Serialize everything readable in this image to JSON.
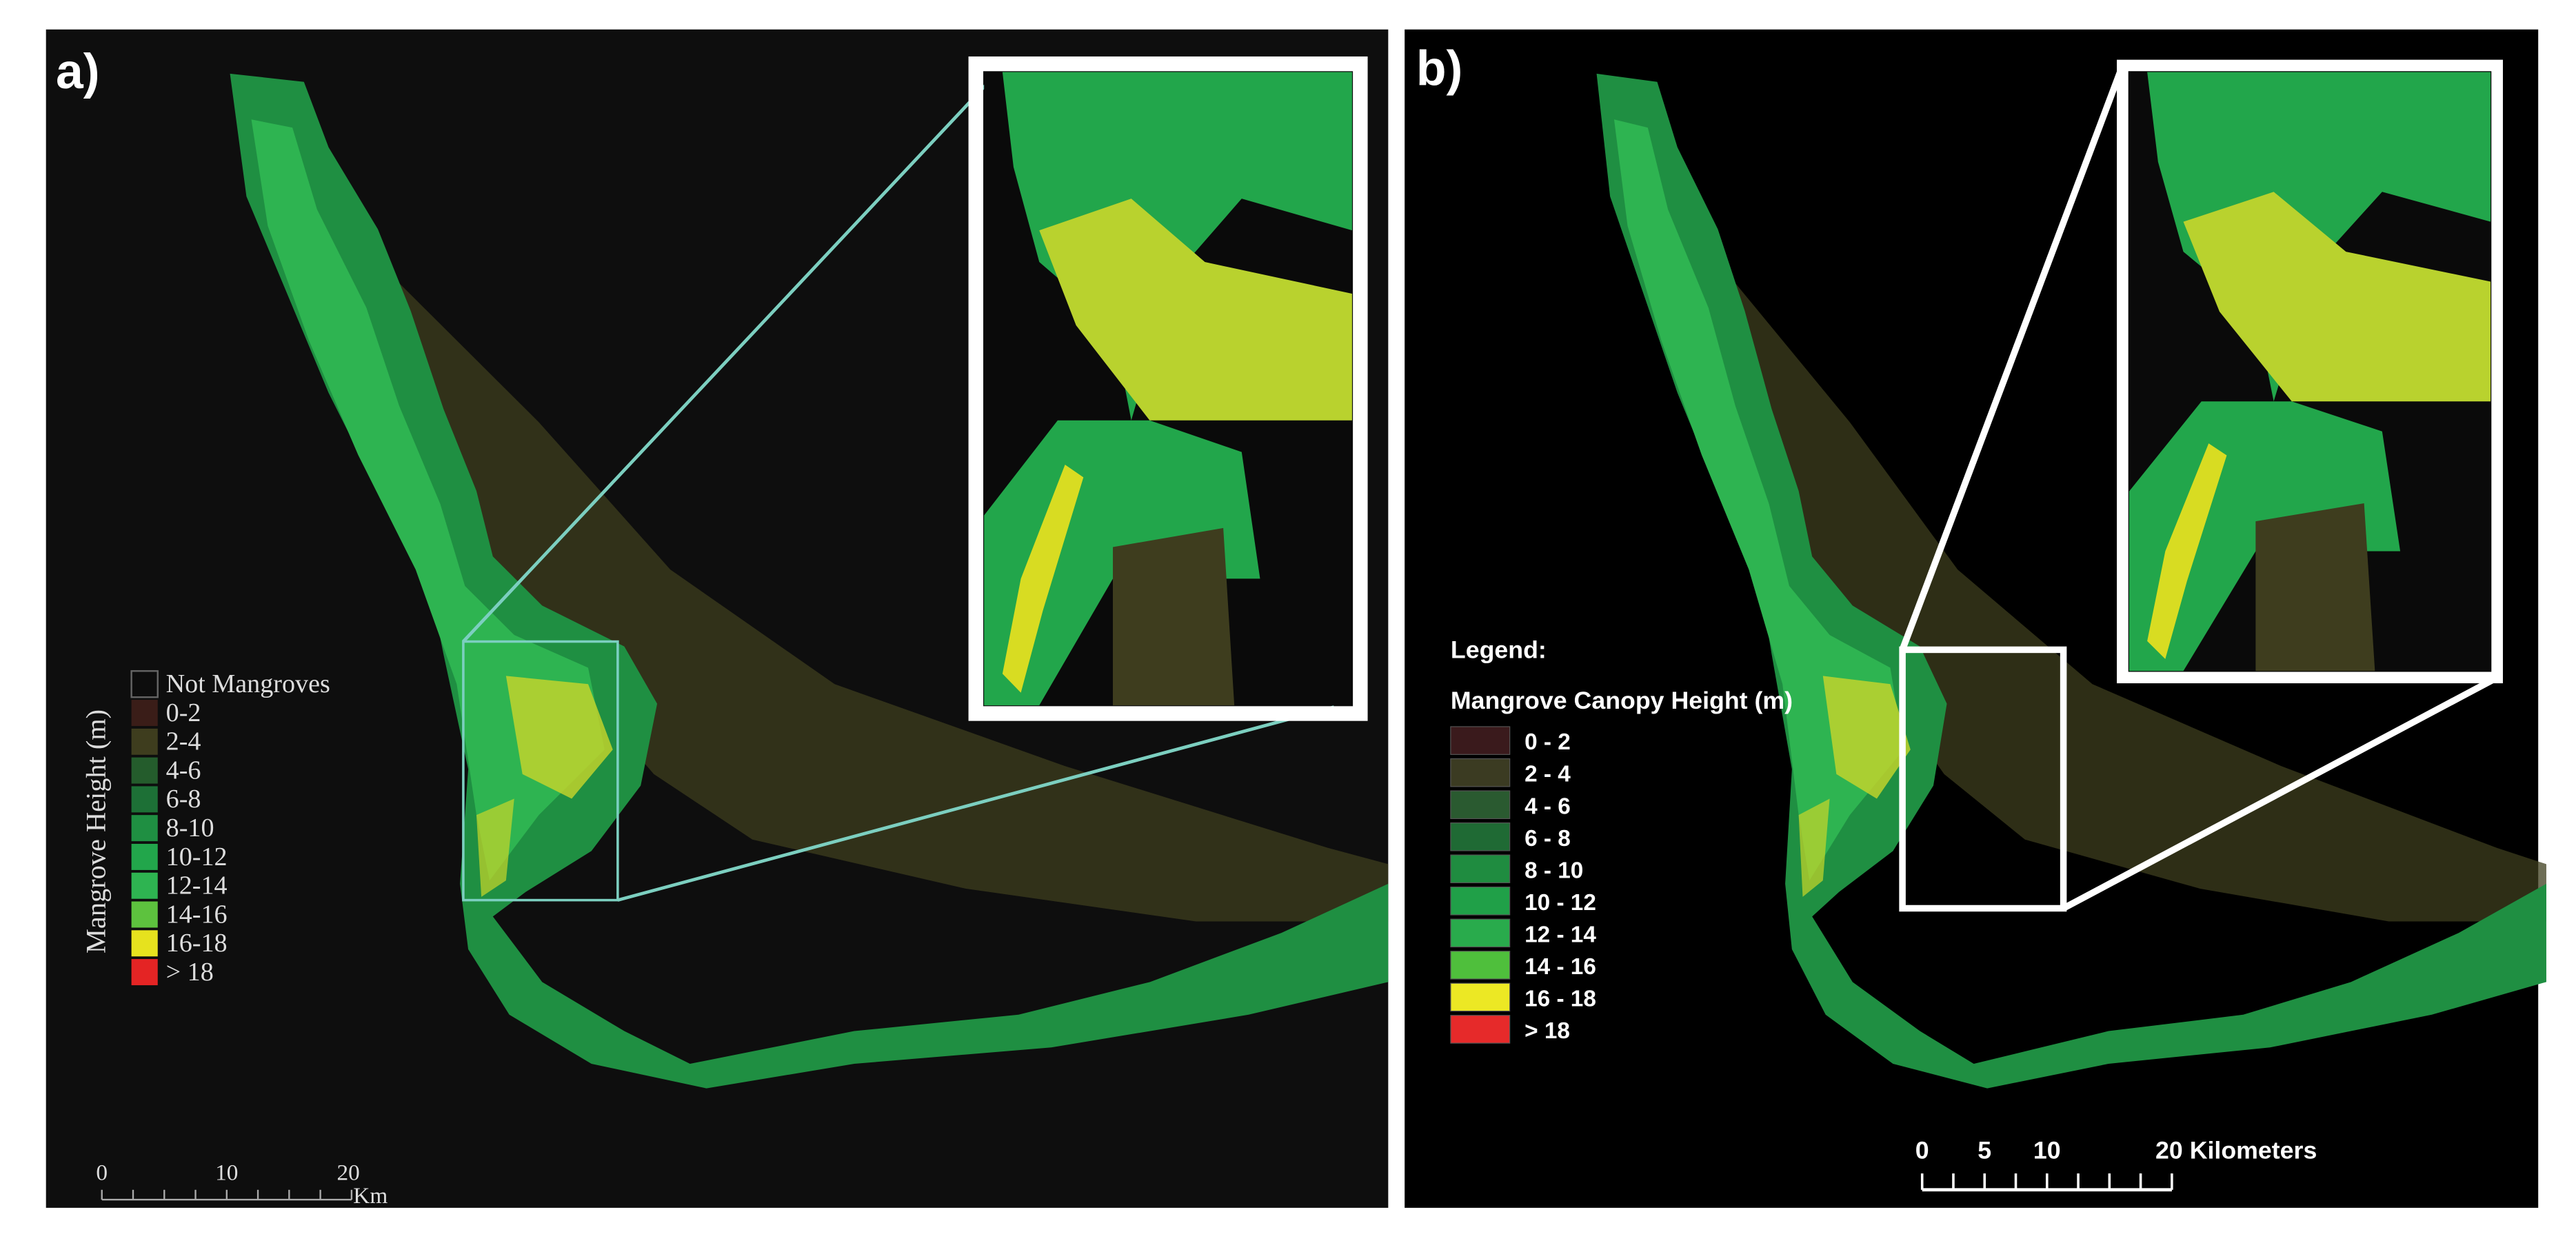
{
  "panels": [
    {
      "label": "a)",
      "legend": {
        "title": "Mangrove Height (m)",
        "entries": [
          {
            "label": "Not Mangroves",
            "color": "#0d0d0d"
          },
          {
            "label": "0-2",
            "color": "#3a1d18"
          },
          {
            "label": "2-4",
            "color": "#3e3d1e"
          },
          {
            "label": "4-6",
            "color": "#245c2c"
          },
          {
            "label": "6-8",
            "color": "#1d7036"
          },
          {
            "label": "8-10",
            "color": "#1f8f42"
          },
          {
            "label": "10-12",
            "color": "#22a64b"
          },
          {
            "label": "12-14",
            "color": "#2eb451"
          },
          {
            "label": "14-16",
            "color": "#5dc23e"
          },
          {
            "label": "16-18",
            "color": "#e6e21e"
          },
          {
            "label": "> 18",
            "color": "#e42424"
          }
        ]
      },
      "scale_bar": {
        "ticks": [
          "0",
          "10",
          "20"
        ],
        "unit": "Km"
      }
    },
    {
      "label": "b)",
      "legend": {
        "heading": "Legend:",
        "title": "Mangrove Canopy Height (m)",
        "entries": [
          {
            "label": "0 - 2",
            "color": "#3a1a1c"
          },
          {
            "label": "2 - 4",
            "color": "#3b3b22"
          },
          {
            "label": "4 - 6",
            "color": "#2a5a30"
          },
          {
            "label": "6 - 8",
            "color": "#1f6a34"
          },
          {
            "label": "8 - 10",
            "color": "#1f8c40"
          },
          {
            "label": "10 - 12",
            "color": "#20a048"
          },
          {
            "label": "12 - 14",
            "color": "#29ab4c"
          },
          {
            "label": "14 - 16",
            "color": "#4fbf3c"
          },
          {
            "label": "16 - 18",
            "color": "#ece824"
          },
          {
            "label": "> 18",
            "color": "#e62a2a"
          }
        ]
      },
      "scale_bar": {
        "ticks": [
          "0",
          "5",
          "10",
          "20 Kilometers"
        ]
      }
    }
  ]
}
